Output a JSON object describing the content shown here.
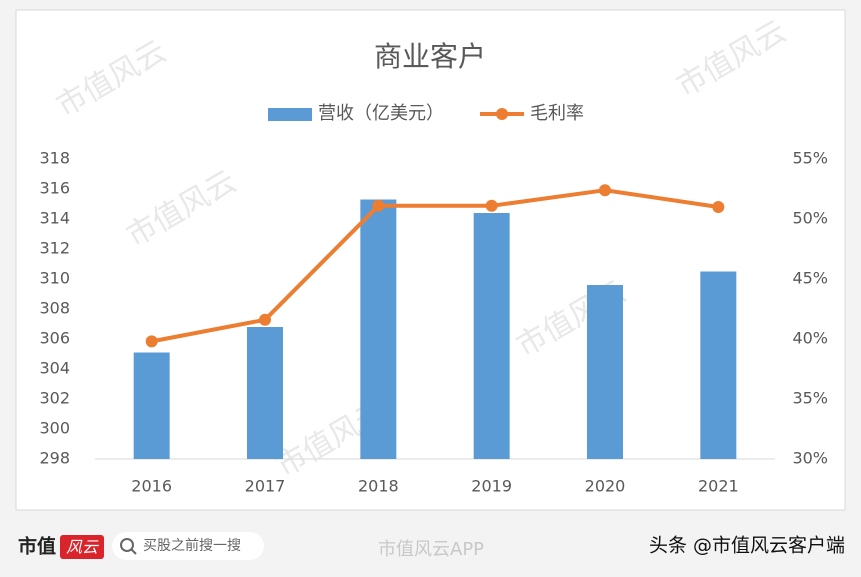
{
  "chart_data": {
    "type": "bar_line",
    "title": "商业客户",
    "categories": [
      "2016",
      "2017",
      "2018",
      "2019",
      "2020",
      "2021"
    ],
    "series": [
      {
        "name": "营收（亿美元）",
        "type": "bar",
        "color": "#5b9bd5",
        "values": [
          305.1,
          306.8,
          315.3,
          314.4,
          309.6,
          310.5
        ]
      },
      {
        "name": "毛利率",
        "type": "line",
        "axis": "y2",
        "color": "#ed7d31",
        "values": [
          39.8,
          41.6,
          51.1,
          51.1,
          52.4,
          51.0
        ]
      }
    ],
    "ylim": [
      298,
      318
    ],
    "yticks": [
      298,
      300,
      302,
      304,
      306,
      308,
      310,
      312,
      314,
      316,
      318
    ],
    "y2lim": [
      30,
      55
    ],
    "y2ticks": [
      {
        "value": 30,
        "label": "30%"
      },
      {
        "value": 35,
        "label": "35%"
      },
      {
        "value": 40,
        "label": "40%"
      },
      {
        "value": 45,
        "label": "45%"
      },
      {
        "value": 50,
        "label": "50%"
      },
      {
        "value": 55,
        "label": "55%"
      }
    ],
    "grid": false,
    "legend": "top"
  },
  "watermark": "市值风云",
  "footer": {
    "brand": "市值",
    "brand_badge": "风云",
    "search": "买股之前搜一搜",
    "app": "市值风云APP",
    "source": "头条 @市值风云客户端"
  }
}
